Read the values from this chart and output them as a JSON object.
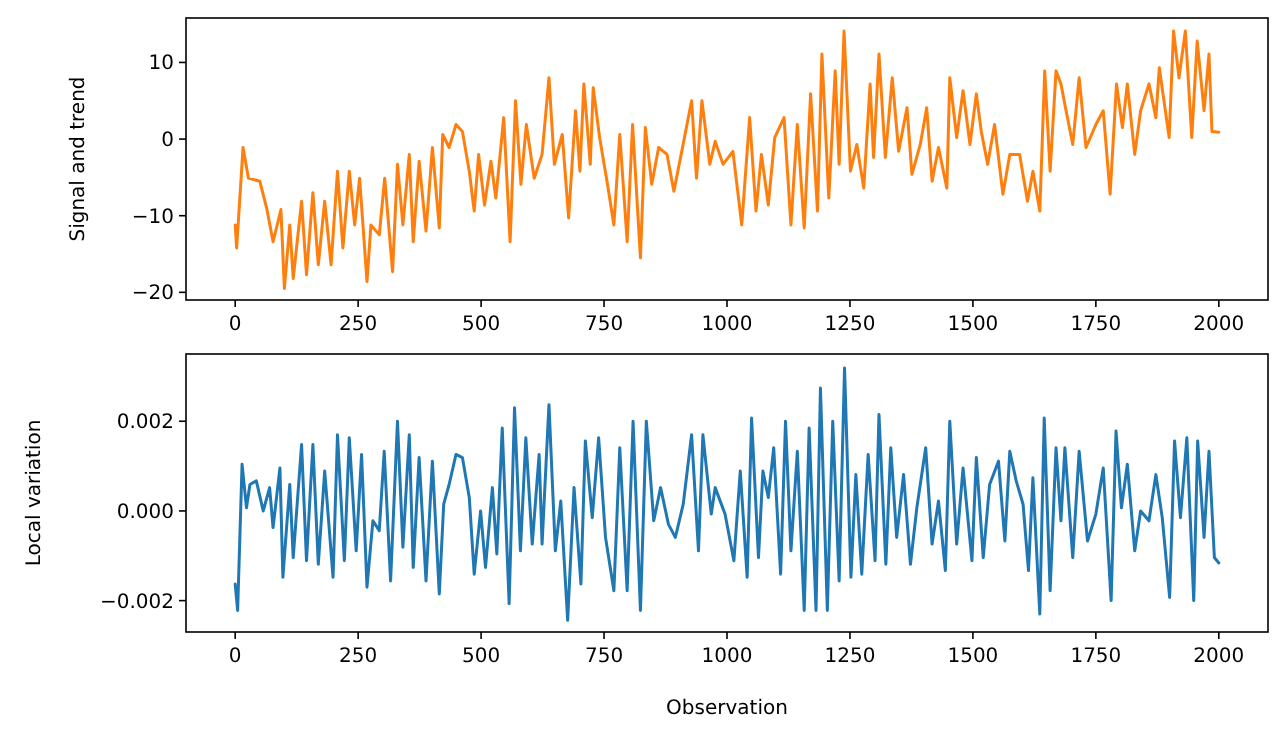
{
  "chart_data": [
    {
      "type": "line",
      "ylabel": "Signal and trend",
      "xlim": [
        -100,
        2100
      ],
      "ylim": [
        -21,
        15.8
      ],
      "xticks": [
        0,
        250,
        500,
        750,
        1000,
        1250,
        1500,
        1750,
        2000
      ],
      "yticks": [
        {
          "value": -20,
          "label": "−20"
        },
        {
          "value": -10,
          "label": "−10"
        },
        0,
        10
      ],
      "series": [
        {
          "color": "#ff7f0e",
          "x": [
            0,
            3,
            16,
            27,
            50,
            64,
            77,
            93,
            100,
            111,
            118,
            135,
            145,
            158,
            169,
            182,
            195,
            208,
            219,
            232,
            243,
            253,
            268,
            276,
            293,
            304,
            320,
            330,
            341,
            354,
            362,
            374,
            388,
            401,
            415,
            422,
            435,
            449,
            462,
            476,
            486,
            495,
            507,
            520,
            530,
            546,
            559,
            570,
            581,
            592,
            608,
            624,
            638,
            649,
            665,
            678,
            692,
            701,
            709,
            722,
            728,
            741,
            757,
            770,
            782,
            797,
            808,
            824,
            834,
            847,
            861,
            878,
            892,
            908,
            928,
            938,
            949,
            965,
            976,
            992,
            1012,
            1030,
            1046,
            1059,
            1070,
            1084,
            1097,
            1116,
            1130,
            1143,
            1157,
            1170,
            1184,
            1193,
            1207,
            1220,
            1228,
            1238,
            1251,
            1264,
            1278,
            1291,
            1298,
            1309,
            1322,
            1336,
            1349,
            1366,
            1376,
            1393,
            1406,
            1417,
            1430,
            1447,
            1453,
            1467,
            1480,
            1494,
            1507,
            1517,
            1530,
            1544,
            1561,
            1575,
            1595,
            1611,
            1622,
            1636,
            1646,
            1657,
            1669,
            1679,
            1687,
            1703,
            1716,
            1730,
            1750,
            1765,
            1779,
            1792,
            1804,
            1814,
            1829,
            1841,
            1858,
            1872,
            1879,
            1899,
            1908,
            1919,
            1932,
            1945,
            1956,
            1970,
            1980,
            1986,
            2000
          ],
          "values": [
            -11.2,
            -14.2,
            -1.1,
            -5.1,
            -5.5,
            -9,
            -13.4,
            -9.2,
            -19.5,
            -11.2,
            -18.2,
            -8.1,
            -17.7,
            -7,
            -16.4,
            -8.1,
            -16.4,
            -4.2,
            -14.2,
            -4.2,
            -11.2,
            -5.1,
            -18.6,
            -11.2,
            -12.5,
            -5.1,
            -17.3,
            -3.3,
            -11.2,
            -2,
            -13.4,
            -2.9,
            -12,
            -1.1,
            -11.6,
            0.6,
            -1.1,
            1.9,
            1,
            -4.2,
            -9.4,
            -2,
            -8.6,
            -2.9,
            -7.7,
            2.8,
            -13.4,
            5,
            -5.9,
            1.9,
            -5.1,
            -2,
            8,
            -3.3,
            0.6,
            -10.3,
            3.7,
            -4.2,
            7.2,
            -3.3,
            6.7,
            0.2,
            -5.9,
            -11.2,
            0.6,
            -13.4,
            1.9,
            -15.5,
            1.5,
            -5.9,
            -1.1,
            -2,
            -6.8,
            -1.6,
            5,
            -5.1,
            5,
            -3.3,
            -0.3,
            -3.3,
            -1.6,
            -11.2,
            2.8,
            -9.4,
            -2,
            -8.6,
            0.2,
            2.8,
            -11.2,
            1.9,
            -11.6,
            5.9,
            -9.4,
            11.1,
            -7.7,
            8.9,
            -3.3,
            14.1,
            -4.2,
            -0.7,
            -6.4,
            7.2,
            -2.4,
            11.1,
            -2.4,
            8,
            -1.6,
            4.1,
            -4.6,
            -0.7,
            4.1,
            -5.5,
            -1.1,
            -6.4,
            8,
            0.2,
            6.3,
            -0.7,
            5.9,
            1,
            -3.3,
            1.9,
            -7.2,
            -2,
            -2,
            -8.1,
            -4.2,
            -9.4,
            8.9,
            -4.2,
            8.9,
            7.2,
            4.5,
            -0.7,
            8,
            -1.1,
            1.9,
            3.7,
            -7.2,
            7.2,
            1.5,
            7.2,
            -2,
            3.7,
            7.2,
            2.8,
            9.3,
            0.2,
            14.1,
            8,
            14.1,
            0.2,
            12.8,
            3.7,
            11.1,
            1,
            0.9
          ]
        }
      ]
    },
    {
      "type": "line",
      "xlabel": "Observation",
      "ylabel": "Local variation",
      "xlim": [
        -100,
        2100
      ],
      "ylim": [
        -0.0027,
        0.0035
      ],
      "xticks": [
        0,
        250,
        500,
        750,
        1000,
        1250,
        1500,
        1750,
        2000
      ],
      "yticks": [
        {
          "value": -0.002,
          "label": "−0.002"
        },
        {
          "value": 0,
          "label": "0.000"
        },
        {
          "value": 0.002,
          "label": "0.002"
        }
      ],
      "series": [
        {
          "color": "#1f77b4",
          "x": [
            0,
            5,
            14,
            23,
            30,
            43,
            57,
            70,
            77,
            91,
            97,
            111,
            118,
            135,
            145,
            158,
            169,
            182,
            199,
            208,
            222,
            232,
            246,
            257,
            268,
            280,
            293,
            303,
            316,
            330,
            341,
            354,
            362,
            374,
            388,
            401,
            415,
            424,
            435,
            449,
            462,
            476,
            486,
            499,
            509,
            523,
            532,
            543,
            557,
            568,
            580,
            591,
            604,
            618,
            624,
            638,
            651,
            662,
            676,
            689,
            703,
            712,
            726,
            739,
            753,
            770,
            782,
            797,
            809,
            824,
            836,
            851,
            865,
            881,
            895,
            911,
            928,
            942,
            951,
            968,
            976,
            996,
            1014,
            1027,
            1041,
            1050,
            1064,
            1073,
            1084,
            1095,
            1109,
            1119,
            1130,
            1143,
            1157,
            1167,
            1181,
            1190,
            1204,
            1215,
            1228,
            1239,
            1252,
            1262,
            1274,
            1287,
            1301,
            1309,
            1323,
            1333,
            1345,
            1359,
            1373,
            1386,
            1404,
            1417,
            1430,
            1444,
            1453,
            1467,
            1480,
            1498,
            1507,
            1521,
            1534,
            1552,
            1565,
            1575,
            1588,
            1602,
            1613,
            1622,
            1636,
            1645,
            1657,
            1669,
            1679,
            1687,
            1703,
            1716,
            1733,
            1750,
            1765,
            1781,
            1791,
            1802,
            1814,
            1829,
            1841,
            1858,
            1872,
            1885,
            1900,
            1910,
            1922,
            1935,
            1949,
            1957,
            1970,
            1980,
            1991,
            2000
          ],
          "values": [
            -0.00163,
            -0.00222,
            0.00104,
            7e-05,
            0.00059,
            0.00067,
            0,
            0.00052,
            -0.00037,
            0.00096,
            -0.00148,
            0.00059,
            -0.00104,
            0.00148,
            -0.00111,
            0.00148,
            -0.00119,
            0.00089,
            -0.00148,
            0.0017,
            -0.00111,
            0.00163,
            -0.00089,
            0.00126,
            -0.0017,
            -0.00022,
            -0.00044,
            0.00133,
            -0.00156,
            0.002,
            -0.00081,
            0.0017,
            -0.00126,
            0.00119,
            -0.00156,
            0.00111,
            -0.00185,
            0.00015,
            0.00059,
            0.00126,
            0.00119,
            0.0003,
            -0.00141,
            0,
            -0.00126,
            0.00052,
            -0.00096,
            0.00185,
            -0.00207,
            0.0023,
            -0.00089,
            0.00163,
            -0.00074,
            0.00126,
            -0.00074,
            0.00237,
            -0.00089,
            0.00022,
            -0.00244,
            0.00052,
            -0.00163,
            0.00156,
            -0.00015,
            0.00163,
            -0.00059,
            -0.00178,
            0.00141,
            -0.00178,
            0.002,
            -0.00222,
            0.002,
            -0.00022,
            0.00052,
            -0.0003,
            -0.00059,
            0.00015,
            0.0017,
            -0.00089,
            0.0017,
            -7e-05,
            0.00052,
            -7e-05,
            -0.00111,
            0.00089,
            -0.00148,
            0.00207,
            -0.00104,
            0.00089,
            0.0003,
            0.00141,
            -0.00141,
            0.002,
            -0.00089,
            0.00133,
            -0.00222,
            0.00185,
            -0.00222,
            0.00274,
            -0.00222,
            0.002,
            -0.00156,
            0.00319,
            -0.00148,
            0.00081,
            -0.00141,
            0.00126,
            -0.00111,
            0.00215,
            -0.00119,
            0.00141,
            -0.00059,
            0.00081,
            -0.00119,
            7e-05,
            0.00141,
            -0.00074,
            0.00022,
            -0.00133,
            0.002,
            -0.00074,
            0.00096,
            -0.00111,
            0.00119,
            -0.00104,
            0.00059,
            0.00111,
            -0.00067,
            0.00133,
            0.00067,
            0.00015,
            -0.00133,
            0.00074,
            -0.0023,
            0.00207,
            -0.00178,
            0.00141,
            -0.00022,
            0.00141,
            -0.00104,
            0.00133,
            -0.00067,
            -7e-05,
            0.00096,
            -0.002,
            0.00178,
            7e-05,
            0.00104,
            -0.00089,
            0,
            -0.00022,
            0.00081,
            -0.00015,
            -0.00193,
            0.00156,
            -0.00015,
            0.00163,
            -0.002,
            0.00156,
            -0.00059,
            0.00133,
            -0.00104,
            -0.00116
          ]
        }
      ]
    }
  ]
}
